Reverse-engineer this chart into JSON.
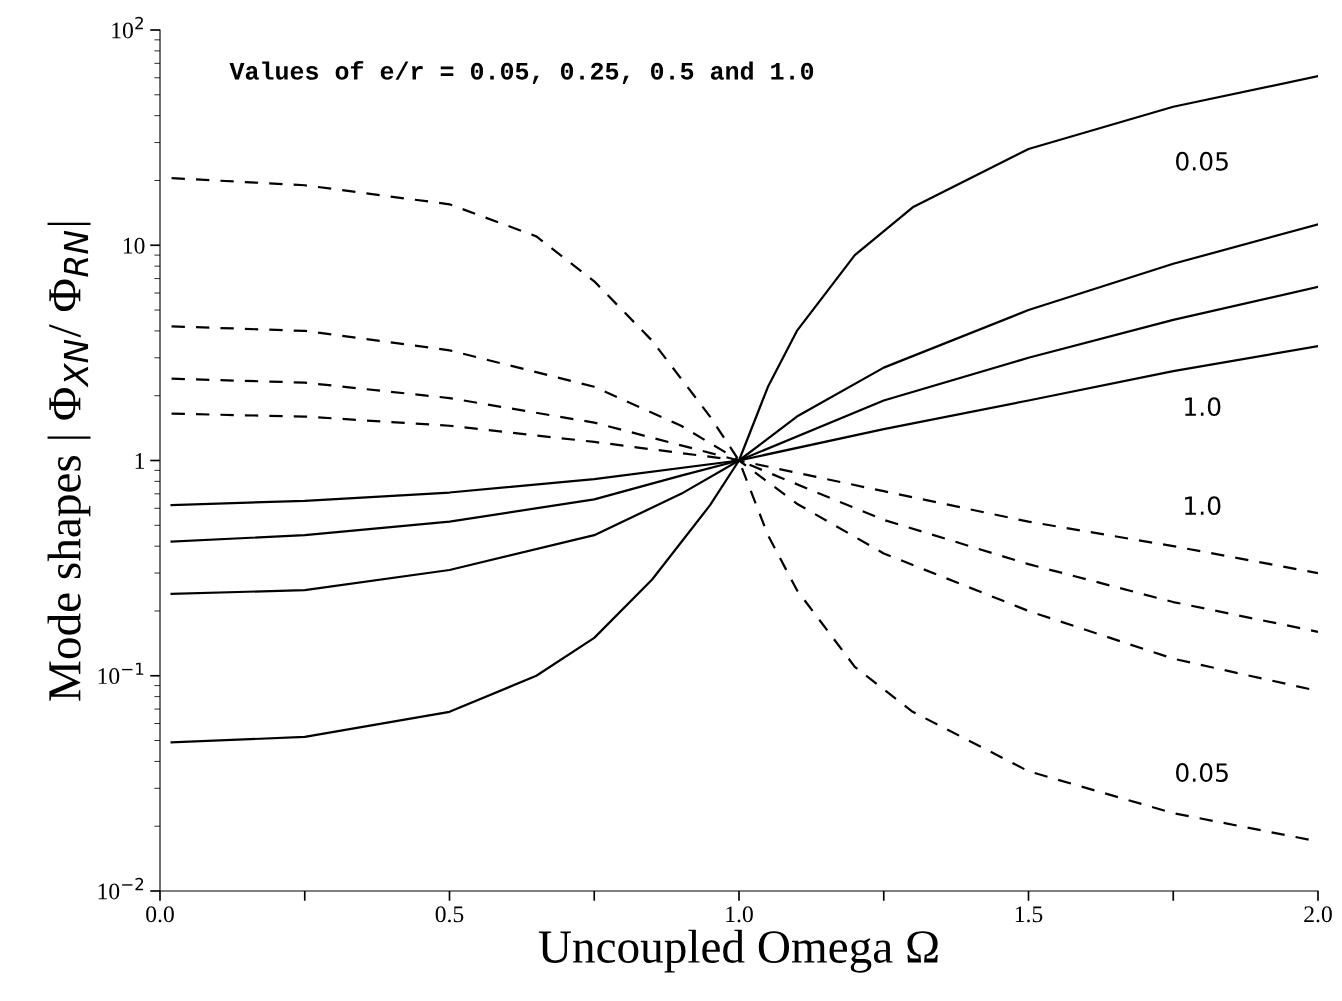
{
  "chart_data": {
    "type": "line",
    "xlabel": "Uncoupled Omega Ω",
    "ylabel": "Mode shapes | Φ$_{XN}$/ Φ$_{RN}$|",
    "log": "y",
    "grid": false,
    "marker": "none",
    "xlim": [
      0,
      2
    ],
    "xticks": [
      {
        "value": 0,
        "label": "0.0"
      },
      {
        "value": 0.25,
        "label": null
      },
      0.5,
      {
        "value": 0.75,
        "label": null
      },
      {
        "value": 1,
        "label": "1.0"
      },
      {
        "value": 1.25,
        "label": null
      },
      1.5,
      {
        "value": 1.75,
        "label": null
      },
      {
        "value": 2,
        "label": "2.0"
      }
    ],
    "ylim": [
      0.01,
      100
    ],
    "yticks": [
      {
        "value": 0.01,
        "label": "10$^{−2}$"
      },
      {
        "value": 0.1,
        "label": "10$^{−1}$"
      },
      1,
      10,
      {
        "value": 100,
        "label": "10$^{2}$"
      }
    ],
    "series": [
      {
        "color": "#000000",
        "line_style": "solid",
        "x": [
          0.02,
          0.25,
          0.5,
          0.65,
          0.75,
          0.85,
          0.95,
          1.0,
          1.05,
          1.1,
          1.2,
          1.3,
          1.5,
          1.75,
          2.0
        ],
        "values": [
          0.049,
          0.052,
          0.068,
          0.1,
          0.15,
          0.28,
          0.62,
          1.0,
          2.2,
          4.0,
          9.0,
          15,
          28,
          44,
          61
        ]
      },
      {
        "color": "#000000",
        "line_style": "solid",
        "x": [
          0.02,
          0.25,
          0.5,
          0.75,
          0.9,
          1.0,
          1.1,
          1.25,
          1.5,
          1.75,
          2.0
        ],
        "values": [
          0.24,
          0.25,
          0.31,
          0.45,
          0.7,
          1.0,
          1.6,
          2.7,
          5.0,
          8.2,
          12.5
        ]
      },
      {
        "color": "#000000",
        "line_style": "solid",
        "x": [
          0.02,
          0.25,
          0.5,
          0.75,
          0.9,
          1.0,
          1.25,
          1.5,
          1.75,
          2.0
        ],
        "values": [
          0.42,
          0.45,
          0.52,
          0.66,
          0.85,
          1.0,
          1.9,
          3.0,
          4.5,
          6.4
        ]
      },
      {
        "color": "#000000",
        "line_style": "solid",
        "x": [
          0.02,
          0.25,
          0.5,
          0.75,
          1.0,
          1.25,
          1.5,
          1.75,
          2.0
        ],
        "values": [
          0.62,
          0.65,
          0.71,
          0.82,
          1.0,
          1.4,
          1.9,
          2.6,
          3.4
        ]
      },
      {
        "color": "#000000",
        "line_style": "dashed",
        "x": [
          0.02,
          0.25,
          0.5,
          0.65,
          0.75,
          0.85,
          0.95,
          1.0,
          1.05,
          1.1,
          1.2,
          1.3,
          1.5,
          1.75,
          2.0
        ],
        "values": [
          20.5,
          19,
          15.5,
          11,
          6.8,
          3.6,
          1.6,
          1.0,
          0.45,
          0.25,
          0.11,
          0.068,
          0.036,
          0.023,
          0.017
        ]
      },
      {
        "color": "#000000",
        "line_style": "dashed",
        "x": [
          0.02,
          0.25,
          0.5,
          0.75,
          0.9,
          1.0,
          1.1,
          1.25,
          1.5,
          1.75,
          2.0
        ],
        "values": [
          4.2,
          4.0,
          3.25,
          2.2,
          1.45,
          1.0,
          0.63,
          0.37,
          0.2,
          0.12,
          0.085
        ]
      },
      {
        "color": "#000000",
        "line_style": "dashed",
        "x": [
          0.02,
          0.25,
          0.5,
          0.75,
          1.0,
          1.25,
          1.5,
          1.75,
          2.0
        ],
        "values": [
          2.4,
          2.3,
          1.95,
          1.5,
          1.0,
          0.53,
          0.33,
          0.22,
          0.16
        ]
      },
      {
        "color": "#000000",
        "line_style": "dashed",
        "x": [
          0.02,
          0.25,
          0.5,
          0.75,
          1.0,
          1.25,
          1.5,
          1.75,
          2.0
        ],
        "values": [
          1.65,
          1.6,
          1.45,
          1.22,
          1.0,
          0.72,
          0.52,
          0.4,
          0.3
        ]
      }
    ],
    "annotations": [
      "Values of e/r = 0.05, 0.25, 0.5 and 1.0",
      "0.05",
      "1.0",
      "1.0",
      "0.05"
    ]
  }
}
